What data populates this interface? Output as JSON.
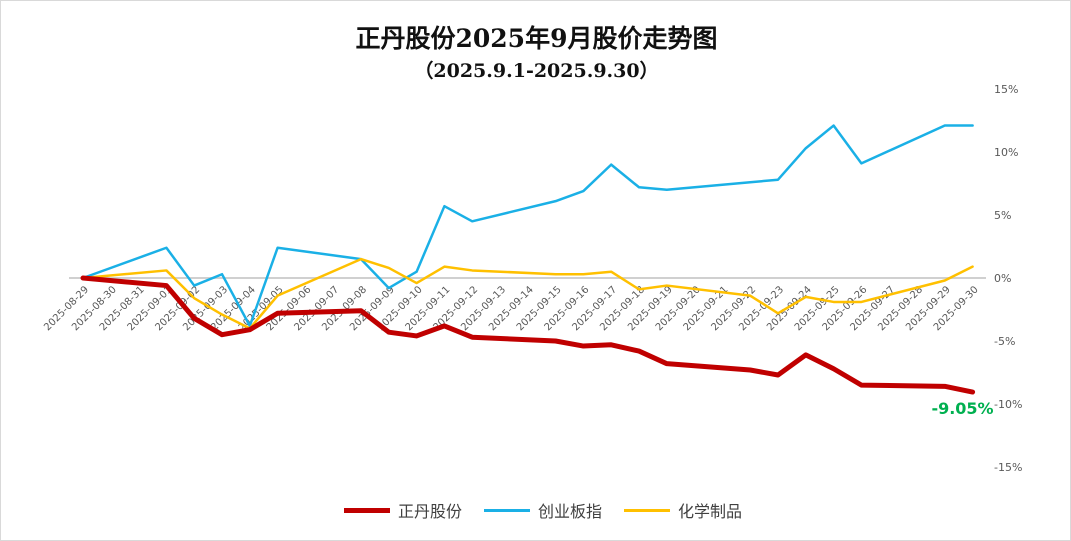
{
  "chart_data": {
    "type": "line",
    "title": "正丹股份2025年9月股价走势图",
    "subtitle": "（2025.9.1-2025.9.30）",
    "x": [
      "2025-08-29",
      "2025-08-30",
      "2025-08-31",
      "2025-09-01",
      "2025-09-02",
      "2025-09-03",
      "2025-09-04",
      "2025-09-05",
      "2025-09-06",
      "2025-09-07",
      "2025-09-08",
      "2025-09-09",
      "2025-09-10",
      "2025-09-11",
      "2025-09-12",
      "2025-09-13",
      "2025-09-14",
      "2025-09-15",
      "2025-09-16",
      "2025-09-17",
      "2025-09-18",
      "2025-09-19",
      "2025-09-20",
      "2025-09-21",
      "2025-09-22",
      "2025-09-23",
      "2025-09-24",
      "2025-09-25",
      "2025-09-26",
      "2025-09-27",
      "2025-09-28",
      "2025-09-29",
      "2025-09-30"
    ],
    "series": [
      {
        "name": "正丹股份",
        "color": "#C00000",
        "values": [
          0,
          null,
          null,
          -0.6,
          -3.2,
          -4.5,
          -4.1,
          -2.8,
          null,
          null,
          -2.6,
          -4.3,
          -4.6,
          -3.8,
          -4.7,
          null,
          null,
          -5.0,
          -5.4,
          -5.3,
          -5.8,
          -6.8,
          null,
          null,
          -7.3,
          -7.7,
          -6.1,
          -7.2,
          -8.5,
          null,
          null,
          -8.6,
          -9.05
        ]
      },
      {
        "name": "创业板指",
        "color": "#1AB0E6",
        "values": [
          0,
          null,
          null,
          2.4,
          -0.6,
          0.3,
          -3.8,
          2.4,
          null,
          null,
          1.5,
          -0.8,
          0.5,
          5.7,
          4.5,
          null,
          null,
          6.1,
          6.9,
          9.0,
          7.2,
          7.0,
          null,
          null,
          7.6,
          7.8,
          10.3,
          12.1,
          9.1,
          null,
          null,
          12.1,
          12.1
        ]
      },
      {
        "name": "化学制品",
        "color": "#FFC000",
        "values": [
          0,
          null,
          null,
          0.6,
          -1.6,
          -2.9,
          -4.0,
          -1.4,
          null,
          null,
          1.5,
          0.8,
          -0.4,
          0.9,
          0.6,
          null,
          null,
          0.3,
          0.3,
          0.5,
          -0.9,
          -0.6,
          null,
          null,
          -1.4,
          -2.8,
          -1.5,
          -1.9,
          -1.9,
          null,
          null,
          -0.2,
          0.9
        ]
      }
    ],
    "yticks": [
      "15%",
      "10%",
      "5%",
      "0%",
      "-5%",
      "-10%",
      "-15%"
    ],
    "ylim": [
      -15,
      15
    ],
    "annotation": "-9.05%",
    "annotation_color": "#00B050",
    "legend_position": "bottom"
  }
}
